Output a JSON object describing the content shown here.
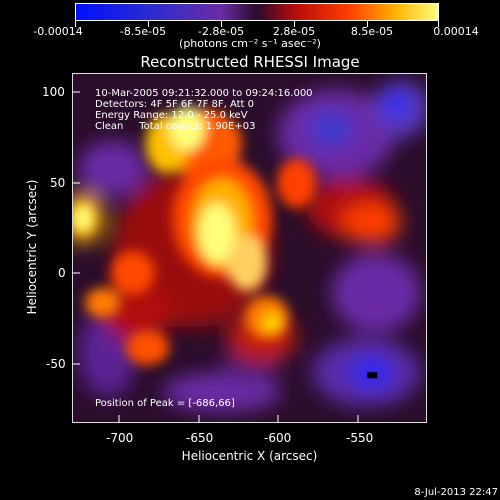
{
  "colorbar": {
    "ticks": [
      "-0.00014",
      "-8.5e-05",
      "-2.8e-05",
      "2.8e-05",
      "8.5e-05",
      "0.00014"
    ],
    "units": "(photons cm⁻² s⁻¹ asec⁻²)",
    "colors": {
      "low": "#0010ff",
      "midlow": "#6a2ca6",
      "zero": "#2a0d2a",
      "midhigh": "#ff3c00",
      "high": "#ffff7a"
    }
  },
  "title": "Reconstructed RHESSI Image",
  "info": {
    "time_range": "10-Mar-2005 09:21:32.000 to 09:24:16.000",
    "detectors": "Detectors: 4F 5F 6F 7F 8F, Att 0",
    "energy": "Energy Range: 12.0 - 25.0 keV",
    "clean": "Clean     Total counts: 1.90E+03"
  },
  "peak": "Position of Peak = [-686,66]",
  "axes": {
    "xlabel": "Heliocentric X (arcsec)",
    "ylabel": "Heliocentric Y (arcsec)",
    "xticks": [
      "-700",
      "-650",
      "-600",
      "-550"
    ],
    "yticks": [
      "100",
      "50",
      "0",
      "-50"
    ]
  },
  "footer": "8-Jul-2013 22:47"
}
